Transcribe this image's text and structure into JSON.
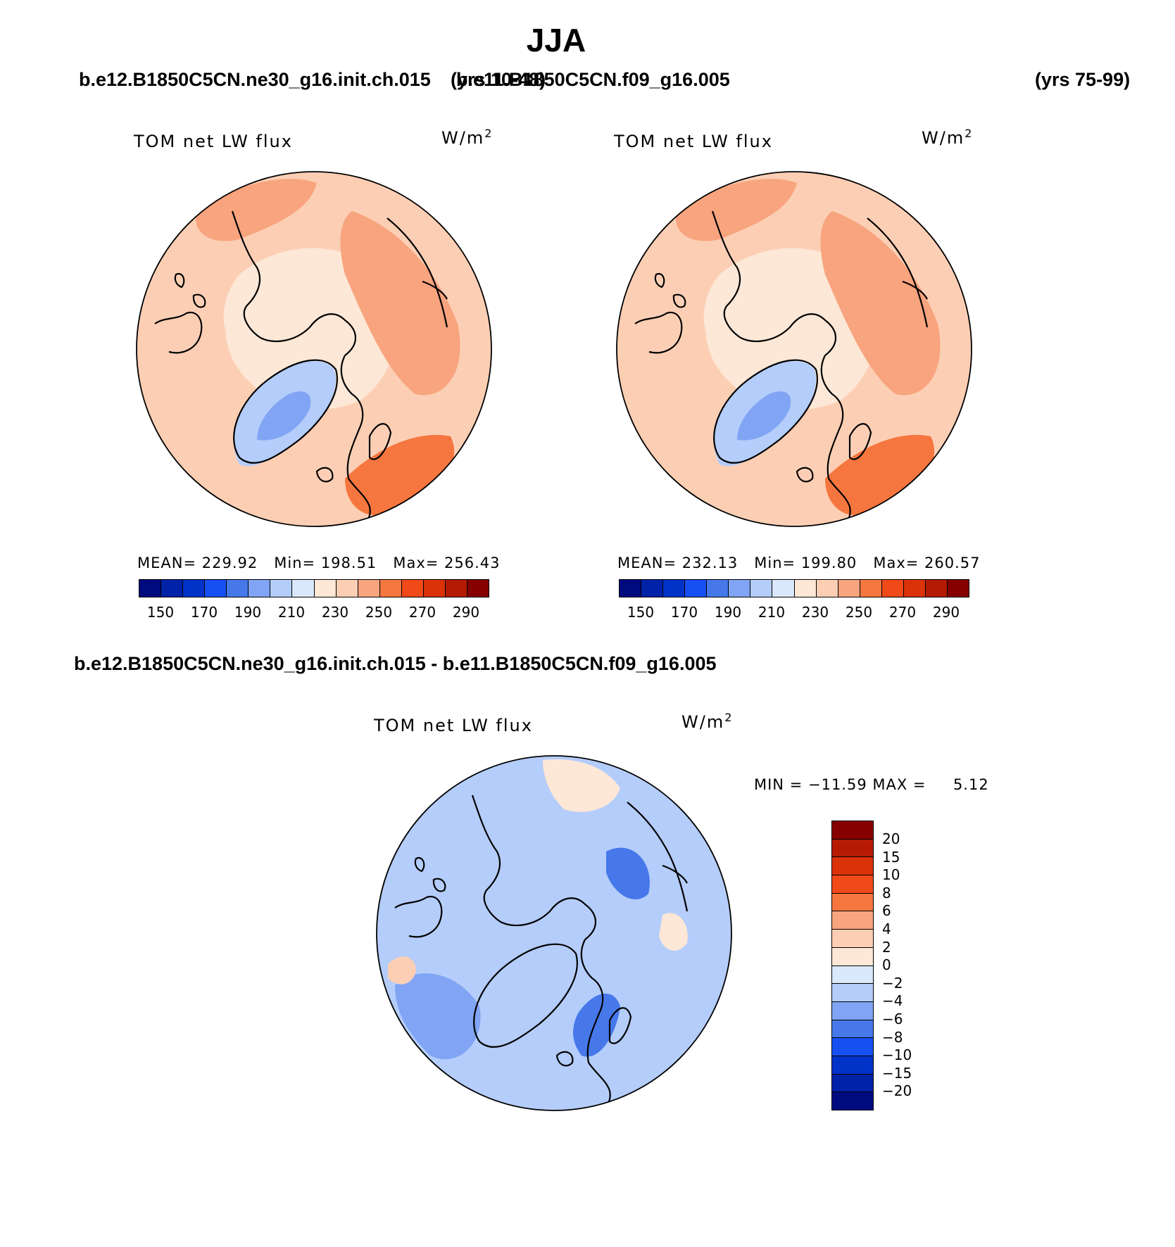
{
  "figure": {
    "season": "JJA",
    "case_label_left": "b.e12.B1850C5CN.ne30_g16.init.ch.015",
    "years_left": "(yrs 10-48)",
    "case_label_right": "b.e11.B1850C5CN.f09_g16.005",
    "years_right": "(yrs 75-99)",
    "diff_title": "b.e12.B1850C5CN.ne30_g16.init.ch.015 - b.e11.B1850C5CN.f09_g16.005"
  },
  "chart_data": [
    {
      "type": "heatmap",
      "projection": "north-polar-stereographic",
      "title": "TOM net LW flux",
      "units": "W/m",
      "units_exp": "2",
      "stats": {
        "mean_label": "MEAN=",
        "mean": "229.92",
        "min_label": "Min=",
        "min": "198.51",
        "max_label": "Max=",
        "max": "256.43"
      },
      "contour_levels": [
        150,
        160,
        170,
        180,
        190,
        200,
        210,
        220,
        230,
        240,
        250,
        260,
        270,
        280,
        290
      ],
      "colorbar_tick_labels": [
        "150",
        "170",
        "190",
        "210",
        "230",
        "250",
        "270",
        "290"
      ],
      "colors": [
        "#000a7f",
        "#0022a8",
        "#0133c8",
        "#1750f0",
        "#4678ea",
        "#81a5f4",
        "#b4cdfa",
        "#d9e8fb",
        "#fde7d6",
        "#fccfb5",
        "#f8a47e",
        "#f6763f",
        "#ef4a18",
        "#db3209",
        "#b51b04",
        "#860001"
      ],
      "regions": {
        "ocean_background": 235,
        "arctic_basin": 225,
        "greenland_interior": 205,
        "greenland_core": 195,
        "canada_alaska": 232,
        "siberia_asia": 245,
        "europe_south": 255,
        "north_pacific": 245
      }
    },
    {
      "type": "heatmap",
      "projection": "north-polar-stereographic",
      "title": "TOM net LW flux",
      "units": "W/m",
      "units_exp": "2",
      "stats": {
        "mean_label": "MEAN=",
        "mean": "232.13",
        "min_label": "Min=",
        "min": "199.80",
        "max_label": "Max=",
        "max": "260.57"
      },
      "contour_levels": [
        150,
        160,
        170,
        180,
        190,
        200,
        210,
        220,
        230,
        240,
        250,
        260,
        270,
        280,
        290
      ],
      "colorbar_tick_labels": [
        "150",
        "170",
        "190",
        "210",
        "230",
        "250",
        "270",
        "290"
      ],
      "colors": [
        "#000a7f",
        "#0022a8",
        "#0133c8",
        "#1750f0",
        "#4678ea",
        "#81a5f4",
        "#b4cdfa",
        "#d9e8fb",
        "#fde7d6",
        "#fccfb5",
        "#f8a47e",
        "#f6763f",
        "#ef4a18",
        "#db3209",
        "#b51b04",
        "#860001"
      ],
      "regions": {
        "ocean_background": 238,
        "arctic_basin": 226,
        "greenland_interior": 205,
        "greenland_core": 195,
        "canada_alaska": 238,
        "siberia_asia": 248,
        "europe_south": 258,
        "north_pacific": 248
      }
    },
    {
      "type": "heatmap",
      "projection": "north-polar-stereographic",
      "title": "TOM net LW flux",
      "units": "W/m",
      "units_exp": "2",
      "stats": {
        "min_label": "MIN =",
        "min": "−11.59",
        "max_label": "MAX =",
        "max": "5.12"
      },
      "contour_levels": [
        -20,
        -15,
        -10,
        -8,
        -6,
        -4,
        -2,
        0,
        2,
        4,
        6,
        8,
        10,
        15,
        20
      ],
      "colorbar_tick_labels": [
        "20",
        "15",
        "10",
        "8",
        "6",
        "4",
        "2",
        "0",
        "−2",
        "−4",
        "−6",
        "−8",
        "−10",
        "−15",
        "−20"
      ],
      "colors": [
        "#000a7f",
        "#0022a8",
        "#0133c8",
        "#1750f0",
        "#4678ea",
        "#81a5f4",
        "#b4cdfa",
        "#d9e8fb",
        "#fde7d6",
        "#fccfb5",
        "#f8a47e",
        "#f6763f",
        "#ef4a18",
        "#db3209",
        "#b51b04",
        "#860001"
      ],
      "regions": {
        "ocean_background": -3,
        "arctic_basin": -3,
        "north_atlantic": -5,
        "scandinavia": -7,
        "siberia_west": -7,
        "alaska_bering": 1,
        "canada_patch": 3,
        "east_asia": 1
      }
    }
  ]
}
